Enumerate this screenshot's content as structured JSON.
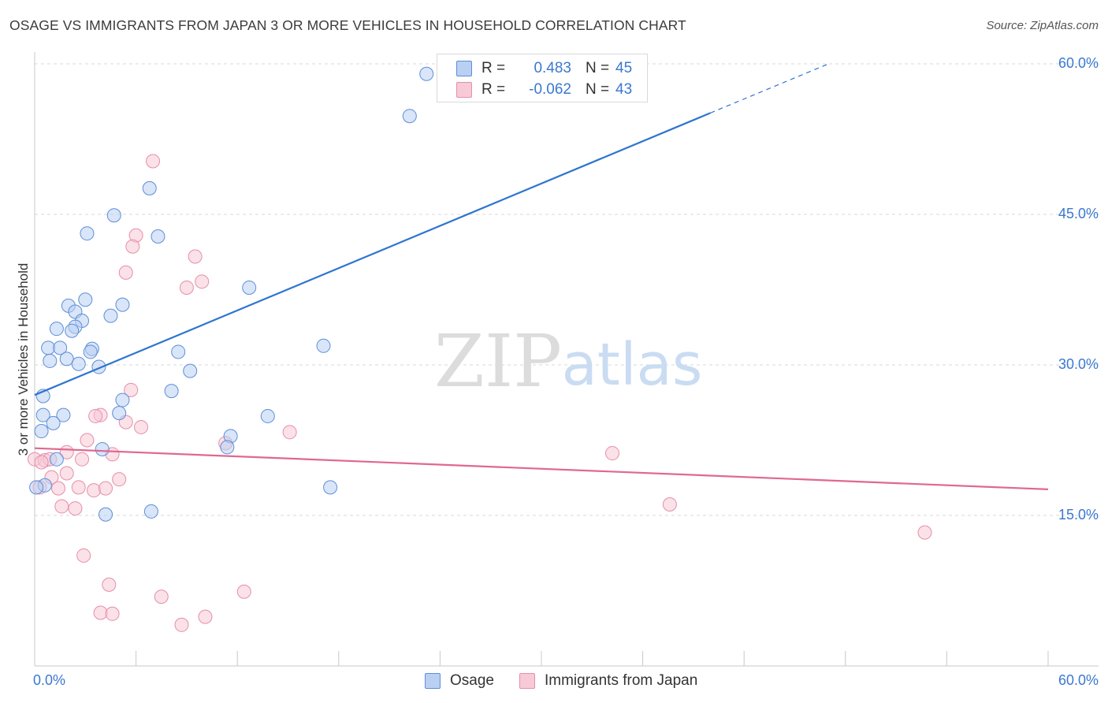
{
  "header": {
    "title": "OSAGE VS IMMIGRANTS FROM JAPAN 3 OR MORE VEHICLES IN HOUSEHOLD CORRELATION CHART",
    "source": "Source: ZipAtlas.com"
  },
  "watermark": {
    "part1": "ZIP",
    "part2": "atlas"
  },
  "legend": {
    "r_label": "R =",
    "n_label": "N =",
    "rows": [
      {
        "r": "0.483",
        "n": "45"
      },
      {
        "r": "-0.062",
        "n": "43"
      }
    ]
  },
  "chart_data": {
    "type": "scatter",
    "title": "OSAGE VS IMMIGRANTS FROM JAPAN 3 OR MORE VEHICLES IN HOUSEHOLD CORRELATION CHART",
    "xlabel": "",
    "ylabel": "3 or more Vehicles in Household",
    "xlim": [
      0,
      60
    ],
    "ylim": [
      0,
      60
    ],
    "x_tick_labels": {
      "left": "0.0%",
      "right": "60.0%"
    },
    "y_ticks": [
      {
        "value": 15,
        "label": "15.0%"
      },
      {
        "value": 30,
        "label": "30.0%"
      },
      {
        "value": 45,
        "label": "45.0%"
      },
      {
        "value": 60,
        "label": "60.0%"
      }
    ],
    "colors": {
      "osage_fill": "#b9d0f2",
      "osage_stroke": "#5d8ed8",
      "osage_line": "#2f75d0",
      "japan_fill": "#f8c9d6",
      "japan_stroke": "#e58fa9",
      "japan_line": "#e0688f",
      "grid": "#dadada",
      "axis": "#c8c8c8",
      "tick_label": "#3a78d0"
    },
    "series": [
      {
        "name": "Osage",
        "r": 0.483,
        "n": 45,
        "trend": {
          "x0": 0,
          "y0": 27.0,
          "x1": 40.0,
          "y1": 55.1,
          "dash_to_x": 47.0,
          "dash_to_y": 60.0
        },
        "points": [
          [
            23.2,
            59.0
          ],
          [
            22.2,
            54.8
          ],
          [
            6.8,
            47.6
          ],
          [
            4.7,
            44.9
          ],
          [
            3.1,
            43.1
          ],
          [
            7.3,
            42.8
          ],
          [
            12.7,
            37.7
          ],
          [
            3.0,
            36.5
          ],
          [
            2.0,
            35.9
          ],
          [
            5.2,
            36.0
          ],
          [
            2.4,
            35.3
          ],
          [
            4.5,
            34.9
          ],
          [
            2.8,
            34.4
          ],
          [
            2.4,
            33.8
          ],
          [
            1.3,
            33.6
          ],
          [
            2.2,
            33.4
          ],
          [
            17.1,
            31.9
          ],
          [
            0.8,
            31.7
          ],
          [
            1.5,
            31.7
          ],
          [
            3.4,
            31.6
          ],
          [
            3.3,
            31.3
          ],
          [
            8.5,
            31.3
          ],
          [
            0.9,
            30.4
          ],
          [
            1.9,
            30.6
          ],
          [
            2.6,
            30.1
          ],
          [
            3.8,
            29.8
          ],
          [
            9.2,
            29.4
          ],
          [
            8.1,
            27.4
          ],
          [
            0.5,
            26.9
          ],
          [
            5.2,
            26.5
          ],
          [
            0.5,
            25.0
          ],
          [
            1.7,
            25.0
          ],
          [
            5.0,
            25.2
          ],
          [
            13.8,
            24.9
          ],
          [
            1.1,
            24.2
          ],
          [
            0.4,
            23.4
          ],
          [
            11.6,
            22.9
          ],
          [
            11.4,
            21.8
          ],
          [
            4.0,
            21.6
          ],
          [
            1.3,
            20.6
          ],
          [
            0.6,
            18.0
          ],
          [
            0.1,
            17.8
          ],
          [
            17.5,
            17.8
          ],
          [
            4.2,
            15.1
          ],
          [
            6.9,
            15.4
          ]
        ]
      },
      {
        "name": "Immigrants from Japan",
        "r": -0.062,
        "n": 43,
        "trend": {
          "x0": 0,
          "y0": 21.7,
          "x1": 60.0,
          "y1": 17.6
        },
        "points": [
          [
            7.0,
            50.3
          ],
          [
            6.0,
            42.9
          ],
          [
            5.8,
            41.8
          ],
          [
            9.5,
            40.8
          ],
          [
            5.4,
            39.2
          ],
          [
            9.9,
            38.3
          ],
          [
            9.0,
            37.7
          ],
          [
            5.7,
            27.5
          ],
          [
            3.9,
            25.0
          ],
          [
            3.6,
            24.9
          ],
          [
            5.4,
            24.3
          ],
          [
            6.3,
            23.8
          ],
          [
            15.1,
            23.3
          ],
          [
            3.1,
            22.5
          ],
          [
            11.3,
            22.2
          ],
          [
            34.2,
            21.2
          ],
          [
            1.9,
            21.3
          ],
          [
            4.6,
            21.1
          ],
          [
            0.0,
            20.6
          ],
          [
            0.6,
            20.5
          ],
          [
            0.9,
            20.6
          ],
          [
            2.8,
            20.6
          ],
          [
            0.4,
            20.3
          ],
          [
            1.9,
            19.2
          ],
          [
            1.0,
            18.8
          ],
          [
            5.0,
            18.6
          ],
          [
            0.3,
            17.8
          ],
          [
            1.4,
            17.7
          ],
          [
            2.6,
            17.8
          ],
          [
            3.5,
            17.5
          ],
          [
            4.2,
            17.7
          ],
          [
            1.6,
            15.9
          ],
          [
            2.4,
            15.7
          ],
          [
            37.6,
            16.1
          ],
          [
            52.7,
            13.3
          ],
          [
            2.9,
            11.0
          ],
          [
            4.4,
            8.1
          ],
          [
            12.4,
            7.4
          ],
          [
            7.5,
            6.9
          ],
          [
            3.9,
            5.3
          ],
          [
            4.6,
            5.2
          ],
          [
            10.1,
            4.9
          ],
          [
            8.7,
            4.1
          ]
        ]
      }
    ]
  },
  "bottom_legend": {
    "items": [
      {
        "label": "Osage"
      },
      {
        "label": "Immigrants from Japan"
      }
    ]
  }
}
